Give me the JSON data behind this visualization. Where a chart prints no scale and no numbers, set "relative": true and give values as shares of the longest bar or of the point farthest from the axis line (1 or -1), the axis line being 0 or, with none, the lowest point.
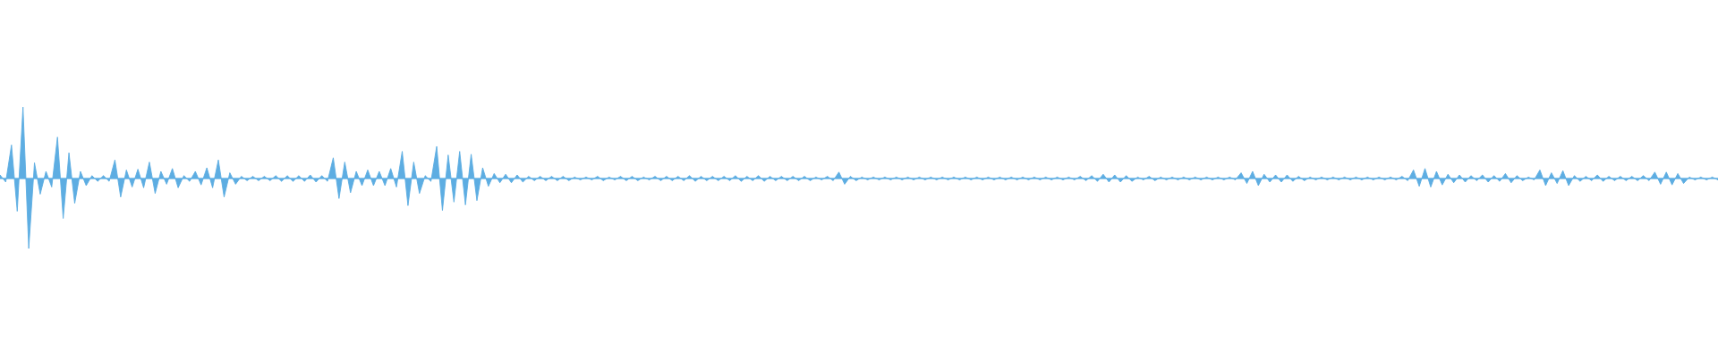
{
  "chart_data": {
    "type": "area",
    "relative": true,
    "categories": [
      null,
      null,
      null,
      null,
      null,
      null,
      null,
      null,
      null,
      null,
      null,
      null,
      null,
      null,
      null,
      null,
      null,
      null,
      null,
      null,
      null,
      null,
      null,
      null,
      null,
      null,
      null,
      null,
      null,
      null,
      null,
      null,
      null,
      null,
      null,
      null,
      null,
      null,
      null,
      null,
      null,
      null,
      null,
      null,
      null,
      null,
      null,
      null,
      null,
      null,
      null,
      null,
      null,
      null,
      null,
      null,
      null,
      null,
      null,
      null,
      null,
      null,
      null,
      null,
      null,
      null,
      null,
      null,
      null,
      null,
      null,
      null,
      null,
      null,
      null,
      null,
      null,
      null,
      null,
      null,
      null,
      null,
      null,
      null,
      null,
      null,
      null,
      null,
      null,
      null,
      null,
      null,
      null,
      null,
      null,
      null,
      null,
      null,
      null,
      null,
      null,
      null,
      null,
      null,
      null,
      null,
      null,
      null,
      null,
      null,
      null,
      null,
      null,
      null,
      null,
      null,
      null,
      null,
      null,
      null,
      null,
      null,
      null,
      null,
      null,
      null,
      null,
      null,
      null,
      null,
      null,
      null,
      null,
      null,
      null,
      null,
      null,
      null,
      null,
      null,
      null,
      null,
      null,
      null,
      null,
      null,
      null,
      null,
      null,
      null,
      null,
      null,
      null,
      null,
      null,
      null,
      null,
      null,
      null,
      null,
      null,
      null,
      null,
      null,
      null,
      null,
      null,
      null,
      null,
      null,
      null,
      null,
      null,
      null,
      null,
      null,
      null,
      null,
      null,
      null,
      null,
      null,
      null,
      null,
      null,
      null,
      null,
      null,
      null,
      null,
      null,
      null,
      null,
      null,
      null,
      null,
      null,
      null,
      null,
      null,
      null,
      null,
      null,
      null,
      null,
      null,
      null,
      null,
      null,
      null,
      null,
      null,
      null,
      null,
      null,
      null,
      null,
      null,
      null,
      null,
      null,
      null,
      null,
      null,
      null,
      null,
      null,
      null,
      null,
      null,
      null,
      null,
      null,
      null,
      null,
      null,
      null,
      null,
      null,
      null,
      null,
      null,
      null,
      null,
      null,
      null,
      null,
      null,
      null,
      null,
      null,
      null,
      null,
      null,
      null,
      null,
      null,
      null,
      null,
      null,
      null,
      null,
      null,
      null,
      null,
      null,
      null,
      null,
      null,
      null,
      null,
      null,
      null,
      null,
      null,
      null,
      null,
      null,
      null,
      null,
      null,
      null,
      null,
      null,
      null,
      null,
      null,
      null,
      null,
      null,
      null,
      null,
      null,
      null,
      null,
      null,
      null,
      null,
      null,
      null
    ],
    "series": [
      {
        "color": "#5dade2",
        "values": [
          0.05,
          -0.05,
          0.47,
          -0.46,
          1.0,
          -0.98,
          0.22,
          -0.22,
          0.1,
          -0.12,
          0.58,
          -0.56,
          0.36,
          -0.35,
          0.1,
          -0.1,
          0.04,
          -0.04,
          0.04,
          -0.04,
          0.26,
          -0.26,
          0.12,
          -0.12,
          0.13,
          -0.13,
          0.23,
          -0.21,
          0.1,
          -0.08,
          0.14,
          -0.13,
          0.04,
          -0.04,
          0.1,
          -0.09,
          0.15,
          -0.13,
          0.26,
          -0.26,
          0.08,
          -0.08,
          0.03,
          -0.03,
          0.03,
          -0.03,
          0.03,
          -0.03,
          0.04,
          -0.04,
          0.04,
          -0.04,
          0.04,
          -0.04,
          0.05,
          -0.05,
          0.04,
          -0.04,
          0.29,
          -0.28,
          0.23,
          -0.2,
          0.1,
          -0.1,
          0.12,
          -0.1,
          0.1,
          -0.1,
          0.14,
          -0.12,
          0.38,
          -0.38,
          0.23,
          -0.21,
          0.04,
          -0.04,
          0.45,
          -0.45,
          0.33,
          -0.33,
          0.38,
          -0.37,
          0.34,
          -0.31,
          0.15,
          -0.11,
          0.07,
          -0.06,
          0.06,
          -0.06,
          0.05,
          -0.05,
          0.03,
          -0.03,
          0.03,
          -0.03,
          0.03,
          -0.03,
          0.03,
          -0.03,
          0.02,
          -0.02,
          0.02,
          -0.02,
          0.03,
          -0.03,
          0.02,
          -0.02,
          0.03,
          -0.03,
          0.03,
          -0.03,
          0.02,
          -0.02,
          0.03,
          -0.03,
          0.03,
          -0.03,
          0.03,
          -0.03,
          0.04,
          -0.04,
          0.03,
          -0.03,
          0.03,
          -0.03,
          0.03,
          -0.03,
          0.04,
          -0.04,
          0.03,
          -0.03,
          0.04,
          -0.04,
          0.03,
          -0.03,
          0.03,
          -0.03,
          0.03,
          -0.03,
          0.03,
          -0.03,
          0.02,
          -0.02,
          0.03,
          -0.03,
          0.09,
          -0.08,
          0.03,
          -0.03,
          0.02,
          -0.02,
          0.02,
          -0.02,
          0.02,
          -0.02,
          0.02,
          -0.02,
          0.02,
          -0.02,
          0.02,
          -0.02,
          0.02,
          -0.02,
          0.02,
          -0.02,
          0.02,
          -0.02,
          0.02,
          -0.02,
          0.02,
          -0.02,
          0.02,
          -0.02,
          0.02,
          -0.02,
          0.02,
          -0.02,
          0.02,
          -0.02,
          0.02,
          -0.02,
          0.02,
          -0.02,
          0.02,
          -0.02,
          0.02,
          -0.02,
          0.03,
          -0.03,
          0.04,
          -0.04,
          0.06,
          -0.05,
          0.05,
          -0.05,
          0.04,
          -0.04,
          0.02,
          -0.02,
          0.03,
          -0.03,
          0.02,
          -0.02,
          0.02,
          -0.02,
          0.02,
          -0.02,
          0.02,
          -0.02,
          0.02,
          -0.02,
          0.02,
          -0.02,
          0.02,
          -0.02,
          0.08,
          -0.07,
          0.1,
          -0.1,
          0.06,
          -0.05,
          0.05,
          -0.05,
          0.05,
          -0.04,
          0.03,
          -0.03,
          0.02,
          -0.02,
          0.02,
          -0.02,
          0.02,
          -0.02,
          0.02,
          -0.02,
          0.02,
          -0.02,
          0.02,
          -0.02,
          0.02,
          -0.02,
          0.02,
          -0.02,
          0.03,
          -0.03,
          0.12,
          -0.11,
          0.14,
          -0.12,
          0.1,
          -0.09,
          0.06,
          -0.06,
          0.05,
          -0.05,
          0.04,
          -0.03,
          0.05,
          -0.05,
          0.04,
          -0.04,
          0.07,
          -0.06,
          0.04,
          -0.03,
          0.02,
          -0.02,
          0.12,
          -0.1,
          0.08,
          -0.07,
          0.11,
          -0.1,
          0.04,
          -0.04,
          0.03,
          -0.03,
          0.05,
          -0.04,
          0.03,
          -0.03,
          0.03,
          -0.03,
          0.03,
          -0.03,
          0.04,
          -0.03,
          0.09,
          -0.08,
          0.09,
          -0.09,
          0.07,
          -0.07,
          0.02,
          -0.02,
          0.02,
          -0.02,
          0.02,
          -0.02
        ]
      }
    ]
  }
}
